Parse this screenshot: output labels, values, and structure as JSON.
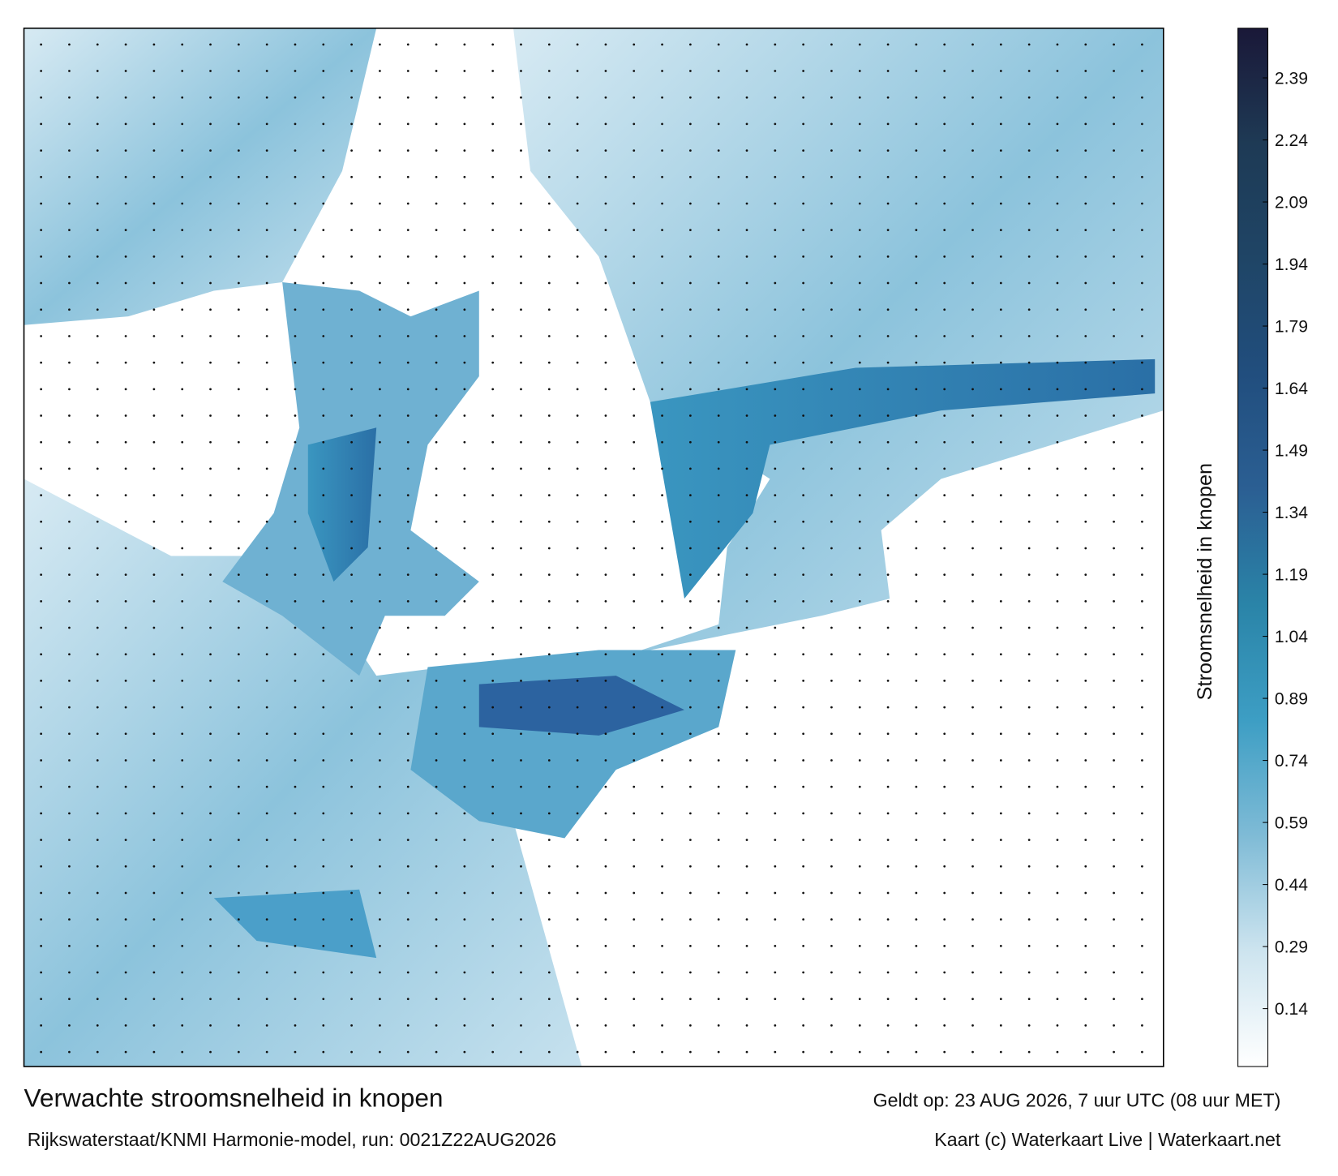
{
  "header": {
    "title": "Verwachte stroomsnelheid in knopen",
    "source": "Rijkswaterstaat/KNMI Harmonie-model, run: 0021Z22AUG2026",
    "valid": "Geldt op: 23 AUG 2026, 7 uur UTC (08 uur MET)",
    "credit": "Kaart (c) Waterkaart Live | Waterkaart.net"
  },
  "colorbar": {
    "label": "Stroomsnelheid in knopen",
    "lim": [
      0,
      2.51
    ],
    "ticks": [
      0.14,
      0.29,
      0.44,
      0.59,
      0.74,
      0.89,
      1.04,
      1.19,
      1.34,
      1.49,
      1.64,
      1.79,
      1.94,
      2.09,
      2.24,
      2.39
    ],
    "colors": [
      "#ffffff",
      "#cde4ef",
      "#7fbbd6",
      "#3d9ec4",
      "#2a84a8",
      "#2b5f93",
      "#214e7e",
      "#1f4566",
      "#1e3a55",
      "#1a1838"
    ]
  }
}
